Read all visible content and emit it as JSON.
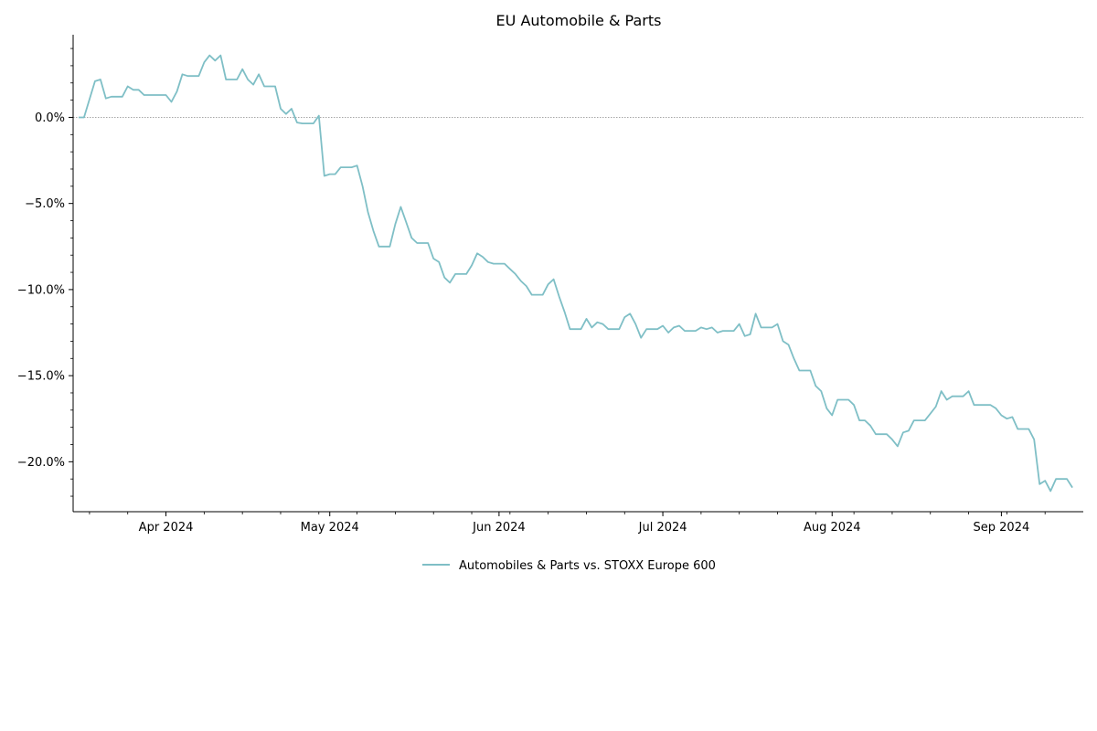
{
  "chart_data": {
    "type": "line",
    "title": "EU Automobile & Parts",
    "xlabel": "",
    "ylabel": "",
    "x_ticks": [
      "Apr 2024",
      "May 2024",
      "Jun 2024",
      "Jul 2024",
      "Aug 2024",
      "Sep 2024"
    ],
    "x_tick_dates": [
      "2024-04-01",
      "2024-05-01",
      "2024-06-01",
      "2024-07-01",
      "2024-08-01",
      "2024-09-01"
    ],
    "xlim": [
      "2024-03-15",
      "2024-09-16"
    ],
    "y_ticks": [
      0,
      -5,
      -10,
      -15,
      -20
    ],
    "y_tick_labels": [
      "0.0%",
      "−5.0%",
      "−10.0%",
      "−15.0%",
      "−20.0%"
    ],
    "ylim": [
      -22.9,
      4.8
    ],
    "y_unit": "%",
    "reference_line": 0,
    "grid": false,
    "legend_position": "bottom-center",
    "series": [
      {
        "name": "Automobiles & Parts vs. STOXX Europe 600",
        "color": "#7fbfc6",
        "points": [
          [
            "2024-03-16",
            0.0
          ],
          [
            "2024-03-17",
            0.0
          ],
          [
            "2024-03-19",
            2.1
          ],
          [
            "2024-03-20",
            2.2
          ],
          [
            "2024-03-21",
            1.1
          ],
          [
            "2024-03-22",
            1.2
          ],
          [
            "2024-03-24",
            1.2
          ],
          [
            "2024-03-25",
            1.8
          ],
          [
            "2024-03-26",
            1.6
          ],
          [
            "2024-03-27",
            1.6
          ],
          [
            "2024-03-28",
            1.3
          ],
          [
            "2024-04-01",
            1.3
          ],
          [
            "2024-04-02",
            0.9
          ],
          [
            "2024-04-03",
            1.5
          ],
          [
            "2024-04-04",
            2.5
          ],
          [
            "2024-04-05",
            2.4
          ],
          [
            "2024-04-07",
            2.4
          ],
          [
            "2024-04-08",
            3.2
          ],
          [
            "2024-04-09",
            3.6
          ],
          [
            "2024-04-10",
            3.3
          ],
          [
            "2024-04-11",
            3.6
          ],
          [
            "2024-04-12",
            2.2
          ],
          [
            "2024-04-14",
            2.2
          ],
          [
            "2024-04-15",
            2.8
          ],
          [
            "2024-04-16",
            2.2
          ],
          [
            "2024-04-17",
            1.9
          ],
          [
            "2024-04-18",
            2.5
          ],
          [
            "2024-04-19",
            1.8
          ],
          [
            "2024-04-21",
            1.8
          ],
          [
            "2024-04-22",
            0.5
          ],
          [
            "2024-04-23",
            0.2
          ],
          [
            "2024-04-24",
            0.5
          ],
          [
            "2024-04-25",
            -0.3
          ],
          [
            "2024-04-26",
            -0.35
          ],
          [
            "2024-04-28",
            -0.35
          ],
          [
            "2024-04-29",
            0.1
          ],
          [
            "2024-04-30",
            -3.4
          ],
          [
            "2024-05-01",
            -3.3
          ],
          [
            "2024-05-02",
            -3.3
          ],
          [
            "2024-05-03",
            -2.9
          ],
          [
            "2024-05-05",
            -2.9
          ],
          [
            "2024-05-06",
            -2.8
          ],
          [
            "2024-05-07",
            -4.0
          ],
          [
            "2024-05-08",
            -5.5
          ],
          [
            "2024-05-09",
            -6.6
          ],
          [
            "2024-05-10",
            -7.5
          ],
          [
            "2024-05-12",
            -7.5
          ],
          [
            "2024-05-13",
            -6.2
          ],
          [
            "2024-05-14",
            -5.2
          ],
          [
            "2024-05-15",
            -6.1
          ],
          [
            "2024-05-16",
            -7.0
          ],
          [
            "2024-05-17",
            -7.3
          ],
          [
            "2024-05-19",
            -7.3
          ],
          [
            "2024-05-20",
            -8.2
          ],
          [
            "2024-05-21",
            -8.4
          ],
          [
            "2024-05-22",
            -9.3
          ],
          [
            "2024-05-23",
            -9.6
          ],
          [
            "2024-05-24",
            -9.1
          ],
          [
            "2024-05-26",
            -9.1
          ],
          [
            "2024-05-27",
            -8.6
          ],
          [
            "2024-05-28",
            -7.9
          ],
          [
            "2024-05-29",
            -8.1
          ],
          [
            "2024-05-30",
            -8.4
          ],
          [
            "2024-05-31",
            -8.5
          ],
          [
            "2024-06-02",
            -8.5
          ],
          [
            "2024-06-03",
            -8.8
          ],
          [
            "2024-06-04",
            -9.1
          ],
          [
            "2024-06-05",
            -9.5
          ],
          [
            "2024-06-06",
            -9.8
          ],
          [
            "2024-06-07",
            -10.3
          ],
          [
            "2024-06-09",
            -10.3
          ],
          [
            "2024-06-10",
            -9.7
          ],
          [
            "2024-06-11",
            -9.4
          ],
          [
            "2024-06-12",
            -10.4
          ],
          [
            "2024-06-13",
            -11.3
          ],
          [
            "2024-06-14",
            -12.3
          ],
          [
            "2024-06-16",
            -12.3
          ],
          [
            "2024-06-17",
            -11.7
          ],
          [
            "2024-06-18",
            -12.2
          ],
          [
            "2024-06-19",
            -11.9
          ],
          [
            "2024-06-20",
            -12.0
          ],
          [
            "2024-06-21",
            -12.3
          ],
          [
            "2024-06-23",
            -12.3
          ],
          [
            "2024-06-24",
            -11.6
          ],
          [
            "2024-06-25",
            -11.4
          ],
          [
            "2024-06-26",
            -12.0
          ],
          [
            "2024-06-27",
            -12.8
          ],
          [
            "2024-06-28",
            -12.3
          ],
          [
            "2024-06-30",
            -12.3
          ],
          [
            "2024-07-01",
            -12.1
          ],
          [
            "2024-07-02",
            -12.5
          ],
          [
            "2024-07-03",
            -12.2
          ],
          [
            "2024-07-04",
            -12.1
          ],
          [
            "2024-07-05",
            -12.4
          ],
          [
            "2024-07-07",
            -12.4
          ],
          [
            "2024-07-08",
            -12.2
          ],
          [
            "2024-07-09",
            -12.3
          ],
          [
            "2024-07-10",
            -12.2
          ],
          [
            "2024-07-11",
            -12.5
          ],
          [
            "2024-07-12",
            -12.4
          ],
          [
            "2024-07-14",
            -12.4
          ],
          [
            "2024-07-15",
            -12.0
          ],
          [
            "2024-07-16",
            -12.7
          ],
          [
            "2024-07-17",
            -12.6
          ],
          [
            "2024-07-18",
            -11.4
          ],
          [
            "2024-07-19",
            -12.2
          ],
          [
            "2024-07-21",
            -12.2
          ],
          [
            "2024-07-22",
            -12.0
          ],
          [
            "2024-07-23",
            -13.0
          ],
          [
            "2024-07-24",
            -13.2
          ],
          [
            "2024-07-25",
            -14.0
          ],
          [
            "2024-07-26",
            -14.7
          ],
          [
            "2024-07-28",
            -14.7
          ],
          [
            "2024-07-29",
            -15.6
          ],
          [
            "2024-07-30",
            -15.9
          ],
          [
            "2024-07-31",
            -16.9
          ],
          [
            "2024-08-01",
            -17.3
          ],
          [
            "2024-08-02",
            -16.4
          ],
          [
            "2024-08-04",
            -16.4
          ],
          [
            "2024-08-05",
            -16.7
          ],
          [
            "2024-08-06",
            -17.6
          ],
          [
            "2024-08-07",
            -17.6
          ],
          [
            "2024-08-08",
            -17.9
          ],
          [
            "2024-08-09",
            -18.4
          ],
          [
            "2024-08-11",
            -18.4
          ],
          [
            "2024-08-12",
            -18.7
          ],
          [
            "2024-08-13",
            -19.1
          ],
          [
            "2024-08-14",
            -18.3
          ],
          [
            "2024-08-15",
            -18.2
          ],
          [
            "2024-08-16",
            -17.6
          ],
          [
            "2024-08-18",
            -17.6
          ],
          [
            "2024-08-19",
            -17.2
          ],
          [
            "2024-08-20",
            -16.8
          ],
          [
            "2024-08-21",
            -15.9
          ],
          [
            "2024-08-22",
            -16.4
          ],
          [
            "2024-08-23",
            -16.2
          ],
          [
            "2024-08-25",
            -16.2
          ],
          [
            "2024-08-26",
            -15.9
          ],
          [
            "2024-08-27",
            -16.7
          ],
          [
            "2024-08-28",
            -16.7
          ],
          [
            "2024-08-30",
            -16.7
          ],
          [
            "2024-08-31",
            -16.9
          ],
          [
            "2024-09-01",
            -17.3
          ],
          [
            "2024-09-02",
            -17.5
          ],
          [
            "2024-09-03",
            -17.4
          ],
          [
            "2024-09-04",
            -18.1
          ],
          [
            "2024-09-06",
            -18.1
          ],
          [
            "2024-09-07",
            -18.7
          ],
          [
            "2024-09-08",
            -21.3
          ],
          [
            "2024-09-09",
            -21.1
          ],
          [
            "2024-09-10",
            -21.7
          ],
          [
            "2024-09-11",
            -21.0
          ],
          [
            "2024-09-13",
            -21.0
          ],
          [
            "2024-09-14",
            -21.5
          ]
        ]
      }
    ]
  }
}
